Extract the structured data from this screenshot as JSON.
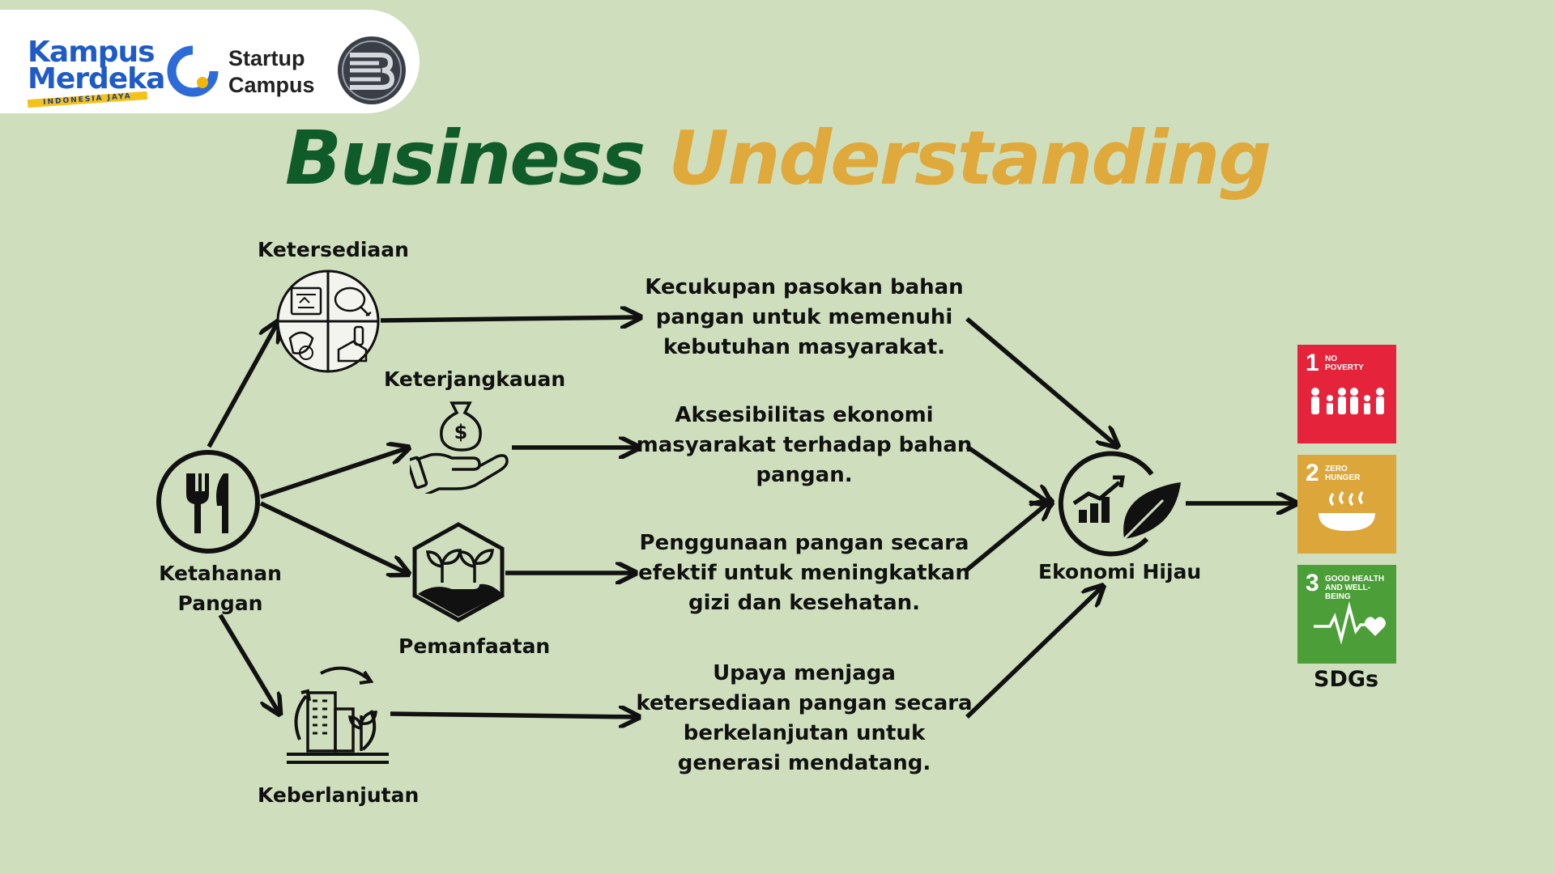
{
  "logos": {
    "kampus_merdeka": {
      "line1": "Kampus",
      "line2": "Merdeka",
      "tagline": "INDONESIA JAYA"
    },
    "startup_campus": {
      "line1": "Startup",
      "line2": "Campus"
    }
  },
  "title": {
    "part1": "Business",
    "part2": "Understanding"
  },
  "center": {
    "label_line1": "Ketahanan",
    "label_line2": "Pangan",
    "icon": "fork-knife-icon"
  },
  "pillars": [
    {
      "label": "Ketersediaan",
      "icon": "food-plate-icon",
      "description": "Kecukupan pasokan bahan pangan untuk memenuhi kebutuhan masyarakat."
    },
    {
      "label": "Keterjangkauan",
      "icon": "money-bag-hand-icon",
      "description": "Aksesibilitas ekonomi masyarakat terhadap bahan pangan."
    },
    {
      "label": "Pemanfaatan",
      "icon": "sprout-hexagon-icon",
      "description": "Penggunaan pangan secara efektif untuk meningkatkan gizi dan kesehatan."
    },
    {
      "label": "Keberlanjutan",
      "icon": "sustainable-city-icon",
      "description": "Upaya menjaga ketersediaan pangan secara berkelanjutan untuk generasi mendatang."
    }
  ],
  "outcome": {
    "label": "Ekonomi Hijau",
    "icon": "green-growth-icon"
  },
  "sdgs": {
    "label": "SDGs",
    "goals": [
      {
        "number": "1",
        "name_line1": "NO",
        "name_line2": "POVERTY",
        "color": "#e5243b"
      },
      {
        "number": "2",
        "name_line1": "ZERO",
        "name_line2": "HUNGER",
        "color": "#dda63a"
      },
      {
        "number": "3",
        "name_line1": "GOOD HEALTH",
        "name_line2": "AND WELL-BEING",
        "color": "#4c9f38"
      }
    ]
  },
  "colors": {
    "background": "#cfdfbd",
    "title_dark": "#0f5b2a",
    "title_accent": "#e0a93b"
  }
}
